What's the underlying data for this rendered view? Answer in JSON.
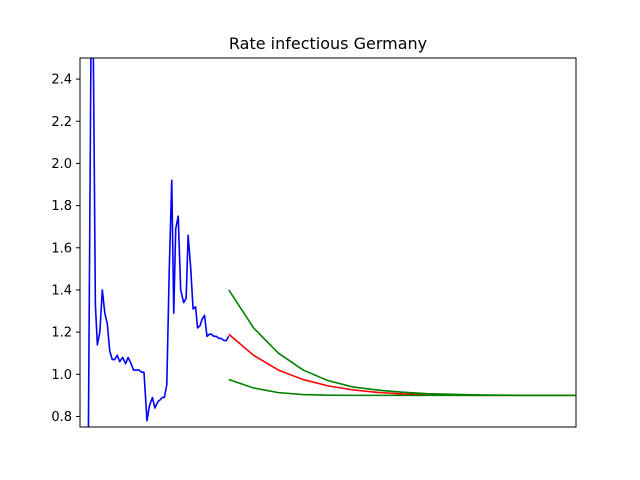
{
  "chart_data": {
    "type": "line",
    "title": "Rate infectious Germany",
    "xlabel": "",
    "ylabel": "",
    "xlim": [
      0,
      100
    ],
    "ylim": [
      0.75,
      2.5
    ],
    "x_ticks_shown": false,
    "y_ticks": [
      0.8,
      1.0,
      1.2,
      1.4,
      1.6,
      1.8,
      2.0,
      2.2,
      2.4
    ],
    "y_tick_labels": [
      "0.8",
      "1.0",
      "1.2",
      "1.4",
      "1.6",
      "1.8",
      "2.0",
      "2.2",
      "2.4"
    ],
    "grid": false,
    "legend": "none",
    "series": [
      {
        "color": "#0000ff",
        "x": [
          1.7,
          2.2,
          2.7,
          3.1,
          3.5,
          4.0,
          4.5,
          5.0,
          5.5,
          6.0,
          6.5,
          7.0,
          7.5,
          8.0,
          8.6,
          9.2,
          9.7,
          10.3,
          10.8,
          11.3,
          11.9,
          12.4,
          12.9,
          13.5,
          14.0,
          14.6,
          15.1,
          15.7,
          16.2,
          16.6,
          17.0,
          17.5,
          18.0,
          18.5,
          18.9,
          19.3,
          19.8,
          20.3,
          20.9,
          21.4,
          21.8,
          22.3,
          22.8,
          23.3,
          23.7,
          24.2,
          24.6,
          25.1,
          25.6,
          26.1,
          26.5,
          27.0,
          27.5,
          28.0,
          28.5,
          29.0,
          29.5,
          30.0
        ],
        "y": [
          0.75,
          2.5,
          2.5,
          1.33,
          1.14,
          1.2,
          1.4,
          1.29,
          1.24,
          1.11,
          1.07,
          1.07,
          1.09,
          1.06,
          1.08,
          1.05,
          1.08,
          1.05,
          1.02,
          1.02,
          1.02,
          1.01,
          1.01,
          0.78,
          0.85,
          0.89,
          0.84,
          0.87,
          0.88,
          0.89,
          0.89,
          0.95,
          1.5,
          1.92,
          1.29,
          1.69,
          1.75,
          1.4,
          1.34,
          1.36,
          1.66,
          1.51,
          1.31,
          1.32,
          1.22,
          1.23,
          1.26,
          1.28,
          1.18,
          1.19,
          1.19,
          1.18,
          1.18,
          1.17,
          1.17,
          1.16,
          1.16,
          1.18
        ]
      },
      {
        "color": "#ff0000",
        "x": [
          30,
          35,
          40,
          45,
          50,
          55,
          60,
          65,
          70,
          75,
          80,
          85,
          90,
          95,
          100
        ],
        "y": [
          1.19,
          1.09,
          1.02,
          0.975,
          0.945,
          0.926,
          0.914,
          0.907,
          0.903,
          0.901,
          0.9,
          0.9,
          0.9,
          0.9,
          0.9
        ]
      },
      {
        "color": "#008000",
        "x": [
          30,
          35,
          40,
          45,
          50,
          55,
          60,
          65,
          70,
          75,
          80,
          85,
          90,
          95,
          100
        ],
        "y": [
          1.4,
          1.22,
          1.1,
          1.02,
          0.97,
          0.94,
          0.925,
          0.915,
          0.908,
          0.905,
          0.902,
          0.901,
          0.9,
          0.9,
          0.9
        ]
      },
      {
        "color": "#008000",
        "x": [
          30,
          35,
          40,
          45,
          50,
          55,
          60,
          65,
          70,
          75,
          80,
          85,
          90,
          95,
          100
        ],
        "y": [
          0.975,
          0.935,
          0.913,
          0.904,
          0.901,
          0.9,
          0.9,
          0.9,
          0.9,
          0.9,
          0.9,
          0.9,
          0.9,
          0.9,
          0.9
        ]
      }
    ]
  }
}
